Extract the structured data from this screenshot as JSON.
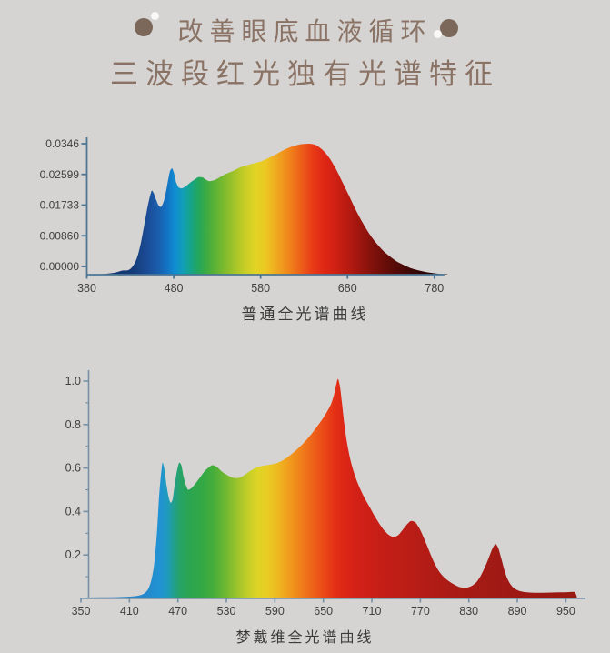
{
  "page": {
    "background": "#d5d4d2"
  },
  "header": {
    "line1": "改善眼底血液循环",
    "line2": "三波段红光独有光谱特征",
    "text_color": "#8a7265",
    "dot_color": "#7c685b",
    "dot_highlight_color": "#faf8f5"
  },
  "chart_data": [
    {
      "type": "area",
      "title": "普通全光谱曲线",
      "xlabel": "",
      "ylabel": "",
      "xlim": [
        380,
        800
      ],
      "ylim": [
        0,
        0.0346
      ],
      "grid": false,
      "legend": "none",
      "axis_color": "#4d7694",
      "tick_label_color": "#404040",
      "ytick_labels": [
        "0.0346",
        "0.02599",
        "0.01733",
        "0.00860",
        "0.00000"
      ],
      "xticks": [
        380,
        480,
        580,
        680,
        780
      ],
      "points": [
        [
          380,
          0
        ],
        [
          395,
          0.0001
        ],
        [
          405,
          0.0003
        ],
        [
          412,
          0.0005
        ],
        [
          418,
          0.0009
        ],
        [
          422,
          0.0011
        ],
        [
          426,
          0.0011
        ],
        [
          430,
          0.0015
        ],
        [
          434,
          0.0026
        ],
        [
          438,
          0.0046
        ],
        [
          442,
          0.0082
        ],
        [
          446,
          0.013
        ],
        [
          450,
          0.018
        ],
        [
          453,
          0.021
        ],
        [
          455,
          0.0222
        ],
        [
          457,
          0.0215
        ],
        [
          460,
          0.0196
        ],
        [
          463,
          0.0182
        ],
        [
          465,
          0.0179
        ],
        [
          468,
          0.019
        ],
        [
          471,
          0.0218
        ],
        [
          474,
          0.0255
        ],
        [
          476,
          0.0275
        ],
        [
          478,
          0.0281
        ],
        [
          480,
          0.0271
        ],
        [
          483,
          0.0243
        ],
        [
          486,
          0.023
        ],
        [
          489,
          0.0228
        ],
        [
          494,
          0.0234
        ],
        [
          500,
          0.0245
        ],
        [
          505,
          0.0253
        ],
        [
          509,
          0.0258
        ],
        [
          513,
          0.0257
        ],
        [
          517,
          0.0251
        ],
        [
          521,
          0.0247
        ],
        [
          526,
          0.0249
        ],
        [
          532,
          0.0256
        ],
        [
          540,
          0.0266
        ],
        [
          548,
          0.0274
        ],
        [
          556,
          0.0283
        ],
        [
          564,
          0.0289
        ],
        [
          572,
          0.0294
        ],
        [
          580,
          0.0299
        ],
        [
          588,
          0.0307
        ],
        [
          596,
          0.0316
        ],
        [
          604,
          0.0326
        ],
        [
          612,
          0.0335
        ],
        [
          620,
          0.0341
        ],
        [
          628,
          0.0345
        ],
        [
          636,
          0.0346
        ],
        [
          643,
          0.0343
        ],
        [
          650,
          0.0332
        ],
        [
          658,
          0.0312
        ],
        [
          666,
          0.0282
        ],
        [
          674,
          0.0245
        ],
        [
          682,
          0.0207
        ],
        [
          690,
          0.0169
        ],
        [
          698,
          0.0135
        ],
        [
          706,
          0.0105
        ],
        [
          714,
          0.0081
        ],
        [
          722,
          0.0061
        ],
        [
          730,
          0.0046
        ],
        [
          738,
          0.0033
        ],
        [
          746,
          0.0024
        ],
        [
          754,
          0.0016
        ],
        [
          762,
          0.0011
        ],
        [
          770,
          0.0007
        ],
        [
          778,
          0.0004
        ],
        [
          786,
          0.0002
        ],
        [
          795,
          0.0001
        ]
      ],
      "spectrum_stops": [
        [
          380,
          "#102f63"
        ],
        [
          432,
          "#153a77"
        ],
        [
          450,
          "#1b4c97"
        ],
        [
          462,
          "#1a5dac"
        ],
        [
          472,
          "#1372c3"
        ],
        [
          482,
          "#0f8ed2"
        ],
        [
          492,
          "#12a0b0"
        ],
        [
          500,
          "#16a487"
        ],
        [
          508,
          "#23a65f"
        ],
        [
          516,
          "#38aa46"
        ],
        [
          526,
          "#57b136"
        ],
        [
          538,
          "#7cba2e"
        ],
        [
          550,
          "#a3c429"
        ],
        [
          562,
          "#c8cd26"
        ],
        [
          574,
          "#e2d425"
        ],
        [
          586,
          "#ecc823"
        ],
        [
          596,
          "#efae20"
        ],
        [
          606,
          "#f0961d"
        ],
        [
          616,
          "#ef7c1b"
        ],
        [
          628,
          "#ec5b18"
        ],
        [
          640,
          "#e83b16"
        ],
        [
          652,
          "#e02815"
        ],
        [
          666,
          "#cf2013"
        ],
        [
          680,
          "#b81b11"
        ],
        [
          695,
          "#9c150e"
        ],
        [
          712,
          "#7c100b"
        ],
        [
          732,
          "#5a0b08"
        ],
        [
          755,
          "#3a0706"
        ],
        [
          778,
          "#230404"
        ],
        [
          800,
          "#1a0303"
        ]
      ]
    },
    {
      "type": "area",
      "title": "梦戴维全光谱曲线",
      "xlabel": "",
      "ylabel": "",
      "xlim": [
        350,
        968
      ],
      "ylim": [
        0,
        1.0
      ],
      "grid": false,
      "legend": "none",
      "axis_color": "#7590a6",
      "tick_label_color": "#404040",
      "ytick_labels": [
        "1.0",
        "0.8",
        "0.6",
        "0.4",
        "0.2"
      ],
      "xticks": [
        350,
        410,
        470,
        530,
        590,
        650,
        710,
        770,
        830,
        890,
        950
      ],
      "points": [
        [
          355,
          0.004
        ],
        [
          375,
          0.005
        ],
        [
          395,
          0.006
        ],
        [
          408,
          0.008
        ],
        [
          416,
          0.01
        ],
        [
          422,
          0.014
        ],
        [
          427,
          0.02
        ],
        [
          432,
          0.036
        ],
        [
          436,
          0.07
        ],
        [
          440,
          0.14
        ],
        [
          444,
          0.3
        ],
        [
          447,
          0.48
        ],
        [
          450,
          0.6
        ],
        [
          451,
          0.625
        ],
        [
          453,
          0.6
        ],
        [
          456,
          0.52
        ],
        [
          459,
          0.46
        ],
        [
          461,
          0.44
        ],
        [
          463,
          0.45
        ],
        [
          466,
          0.52
        ],
        [
          469,
          0.59
        ],
        [
          472,
          0.625
        ],
        [
          474,
          0.615
        ],
        [
          477,
          0.56
        ],
        [
          480,
          0.52
        ],
        [
          483,
          0.5
        ],
        [
          486,
          0.505
        ],
        [
          491,
          0.525
        ],
        [
          497,
          0.555
        ],
        [
          503,
          0.585
        ],
        [
          509,
          0.605
        ],
        [
          513,
          0.613
        ],
        [
          518,
          0.605
        ],
        [
          524,
          0.585
        ],
        [
          530,
          0.57
        ],
        [
          536,
          0.558
        ],
        [
          542,
          0.553
        ],
        [
          548,
          0.558
        ],
        [
          554,
          0.572
        ],
        [
          560,
          0.588
        ],
        [
          566,
          0.6
        ],
        [
          572,
          0.608
        ],
        [
          580,
          0.613
        ],
        [
          588,
          0.618
        ],
        [
          596,
          0.628
        ],
        [
          604,
          0.645
        ],
        [
          612,
          0.668
        ],
        [
          620,
          0.695
        ],
        [
          628,
          0.725
        ],
        [
          636,
          0.76
        ],
        [
          644,
          0.8
        ],
        [
          650,
          0.832
        ],
        [
          655,
          0.862
        ],
        [
          659,
          0.89
        ],
        [
          663,
          0.935
        ],
        [
          666,
          0.985
        ],
        [
          668,
          1.01
        ],
        [
          670,
          0.985
        ],
        [
          673,
          0.9
        ],
        [
          676,
          0.8
        ],
        [
          680,
          0.7
        ],
        [
          685,
          0.615
        ],
        [
          690,
          0.555
        ],
        [
          696,
          0.5
        ],
        [
          702,
          0.455
        ],
        [
          708,
          0.415
        ],
        [
          714,
          0.375
        ],
        [
          720,
          0.34
        ],
        [
          726,
          0.31
        ],
        [
          732,
          0.29
        ],
        [
          737,
          0.283
        ],
        [
          742,
          0.29
        ],
        [
          748,
          0.315
        ],
        [
          754,
          0.343
        ],
        [
          759,
          0.357
        ],
        [
          763,
          0.352
        ],
        [
          768,
          0.328
        ],
        [
          773,
          0.29
        ],
        [
          778,
          0.245
        ],
        [
          783,
          0.2
        ],
        [
          788,
          0.158
        ],
        [
          794,
          0.12
        ],
        [
          800,
          0.095
        ],
        [
          807,
          0.075
        ],
        [
          814,
          0.06
        ],
        [
          820,
          0.051
        ],
        [
          826,
          0.049
        ],
        [
          832,
          0.055
        ],
        [
          838,
          0.07
        ],
        [
          844,
          0.1
        ],
        [
          850,
          0.145
        ],
        [
          856,
          0.2
        ],
        [
          860,
          0.235
        ],
        [
          863,
          0.25
        ],
        [
          866,
          0.235
        ],
        [
          870,
          0.185
        ],
        [
          874,
          0.13
        ],
        [
          878,
          0.088
        ],
        [
          883,
          0.058
        ],
        [
          888,
          0.042
        ],
        [
          894,
          0.033
        ],
        [
          902,
          0.028
        ],
        [
          912,
          0.026
        ],
        [
          922,
          0.026
        ],
        [
          932,
          0.027
        ],
        [
          942,
          0.028
        ],
        [
          952,
          0.029
        ],
        [
          960,
          0.03
        ],
        [
          963,
          0.015
        ],
        [
          964,
          0
        ]
      ],
      "spectrum_stops": [
        [
          350,
          "#2a7fc0"
        ],
        [
          430,
          "#2489cc"
        ],
        [
          448,
          "#2193d3"
        ],
        [
          458,
          "#1f9bba"
        ],
        [
          466,
          "#23a085"
        ],
        [
          474,
          "#27a363"
        ],
        [
          486,
          "#2ba54f"
        ],
        [
          500,
          "#33a845"
        ],
        [
          514,
          "#46ad3b"
        ],
        [
          528,
          "#6cb732"
        ],
        [
          542,
          "#97c22c"
        ],
        [
          556,
          "#c2cd28"
        ],
        [
          568,
          "#ddd426"
        ],
        [
          580,
          "#e9cd24"
        ],
        [
          592,
          "#edbb21"
        ],
        [
          604,
          "#f0a31e"
        ],
        [
          616,
          "#f08c1c"
        ],
        [
          628,
          "#ef741a"
        ],
        [
          640,
          "#ed5d18"
        ],
        [
          652,
          "#ea4617"
        ],
        [
          664,
          "#e43016"
        ],
        [
          676,
          "#dd2616"
        ],
        [
          690,
          "#d42117"
        ],
        [
          710,
          "#ca1f17"
        ],
        [
          735,
          "#c01e17"
        ],
        [
          765,
          "#b71d16"
        ],
        [
          800,
          "#ac1b15"
        ],
        [
          840,
          "#a41a14"
        ],
        [
          880,
          "#9f1914"
        ],
        [
          930,
          "#9a1913"
        ],
        [
          968,
          "#991913"
        ]
      ]
    }
  ]
}
